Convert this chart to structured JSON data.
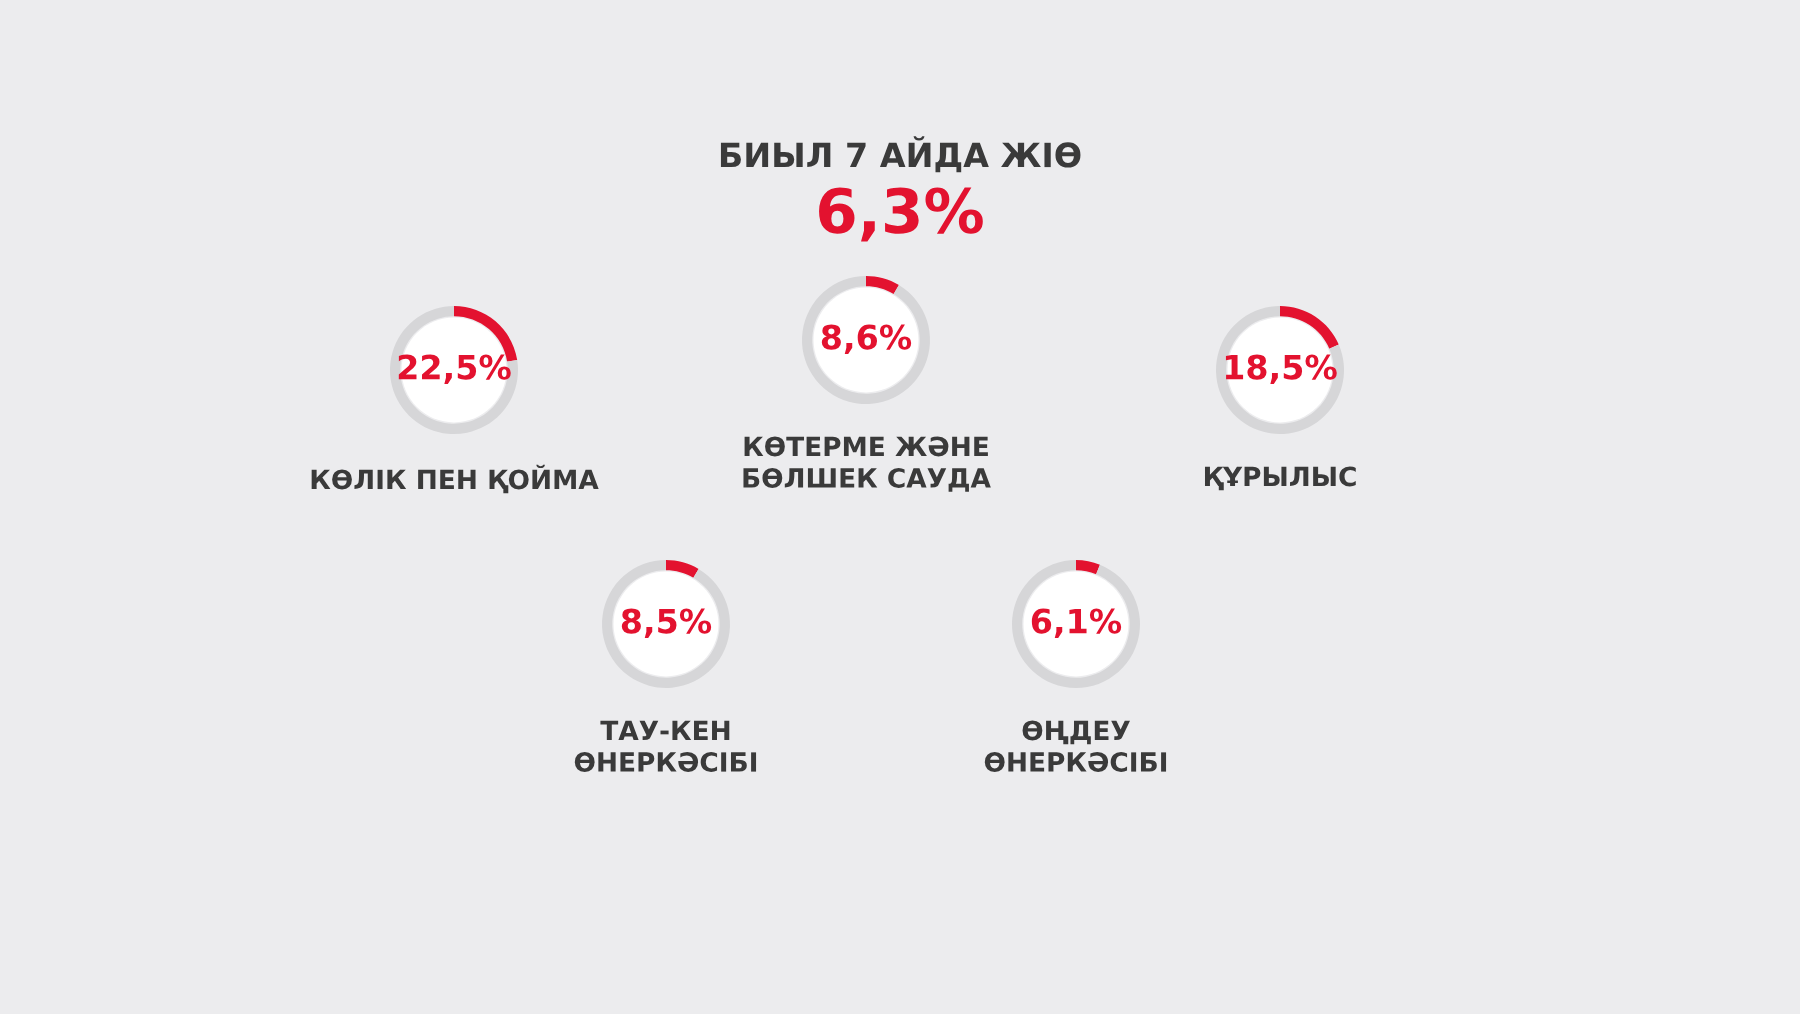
{
  "chart_data": [
    {
      "type": "other",
      "title": "БИЫЛ 7 АЙДА ЖІӨ",
      "annotations": [
        "6,3%"
      ]
    },
    {
      "type": "donut",
      "title": "КӨЛІК ПЕН ҚОЙМА",
      "categories": [
        null,
        null
      ],
      "values": [
        22.5,
        77.5
      ],
      "colors": [
        "#e3122f",
        "#d6d6d8"
      ],
      "value_labels": [
        "22,5%",
        null
      ]
    },
    {
      "type": "donut",
      "title": "КӨТЕРМЕ ЖӘНЕ\nБӨЛШЕК САУДА",
      "categories": [
        null,
        null
      ],
      "values": [
        8.6,
        91.4
      ],
      "colors": [
        "#e3122f",
        "#d6d6d8"
      ],
      "value_labels": [
        "8,6%",
        null
      ]
    },
    {
      "type": "donut",
      "title": "ҚҰРЫЛЫС",
      "categories": [
        null,
        null
      ],
      "values": [
        18.5,
        81.5
      ],
      "colors": [
        "#e3122f",
        "#d6d6d8"
      ],
      "value_labels": [
        "18,5%",
        null
      ]
    },
    {
      "type": "donut",
      "title": "ТАУ-КЕН\nӨНЕРКӘСІБІ",
      "categories": [
        null,
        null
      ],
      "values": [
        8.5,
        91.5
      ],
      "colors": [
        "#e3122f",
        "#d6d6d8"
      ],
      "value_labels": [
        "8,5%",
        null
      ]
    },
    {
      "type": "donut",
      "title": "ӨҢДЕУ\nӨНЕРКӘСІБІ",
      "categories": [
        null,
        null
      ],
      "values": [
        6.1,
        93.9
      ],
      "colors": [
        "#e3122f",
        "#d6d6d8"
      ],
      "value_labels": [
        "6,1%",
        null
      ]
    }
  ]
}
